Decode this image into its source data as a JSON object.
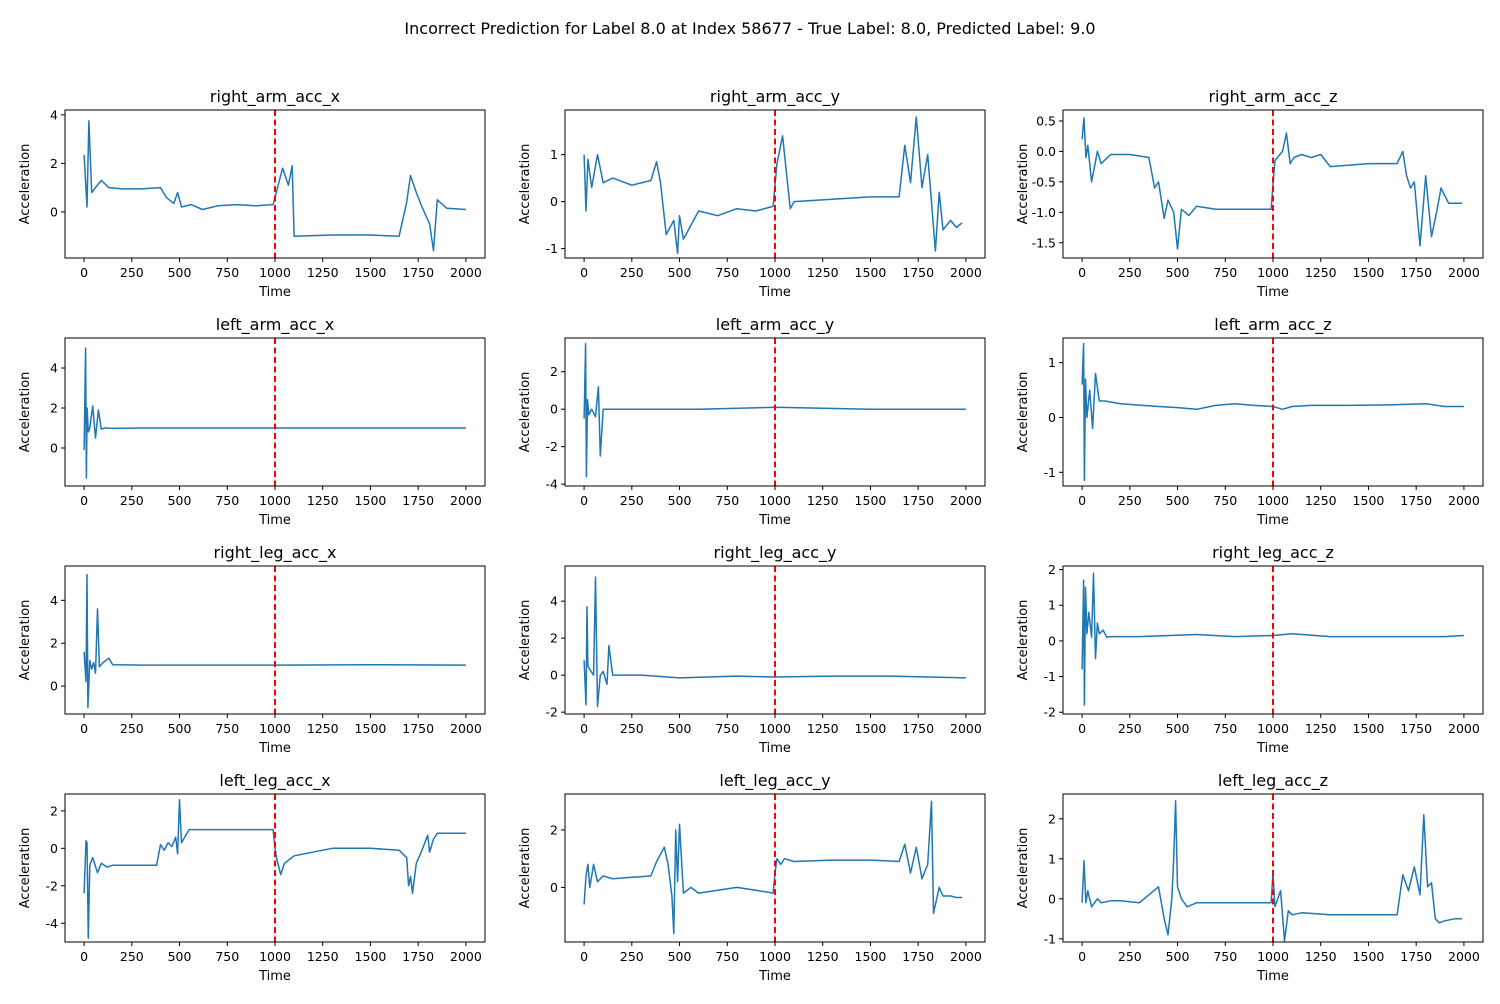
{
  "figure_title": "Incorrect Prediction for Label 8.0 at Index 58677 - True Label: 8.0, Predicted Label: 9.0",
  "colors": {
    "series": "#1f77b4",
    "marker": "#ff0000",
    "axes": "#000000"
  },
  "chart_data": [
    {
      "type": "line",
      "title": "right_arm_acc_x",
      "xlabel": "Time",
      "ylabel": "Acceleration",
      "xlim": [
        -100,
        2100
      ],
      "ylim": [
        -1.9,
        4.2
      ],
      "xticks": [
        0,
        250,
        500,
        750,
        1000,
        1250,
        1500,
        1750,
        2000
      ],
      "yticks": [
        0,
        2,
        4
      ],
      "vline_x": 1000,
      "x": [
        0,
        15,
        25,
        40,
        60,
        90,
        130,
        200,
        300,
        400,
        430,
        470,
        490,
        510,
        560,
        620,
        700,
        800,
        900,
        990,
        1010,
        1040,
        1070,
        1090,
        1100,
        1300,
        1500,
        1650,
        1690,
        1710,
        1740,
        1770,
        1810,
        1830,
        1850,
        1900,
        2000
      ],
      "y": [
        2.35,
        0.2,
        3.75,
        0.8,
        1.0,
        1.3,
        1.0,
        0.95,
        0.95,
        1.0,
        0.6,
        0.35,
        0.8,
        0.2,
        0.3,
        0.1,
        0.25,
        0.3,
        0.25,
        0.3,
        0.9,
        1.8,
        1.1,
        1.9,
        -1.0,
        -0.95,
        -0.95,
        -1.0,
        0.4,
        1.5,
        0.8,
        0.2,
        -0.5,
        -1.6,
        0.5,
        0.15,
        0.1
      ]
    },
    {
      "type": "line",
      "title": "right_arm_acc_y",
      "xlabel": "Time",
      "ylabel": "Acceleration",
      "xlim": [
        -100,
        2100
      ],
      "ylim": [
        -1.2,
        1.95
      ],
      "xticks": [
        0,
        250,
        500,
        750,
        1000,
        1250,
        1500,
        1750,
        2000
      ],
      "yticks": [
        -1,
        0,
        1
      ],
      "vline_x": 1000,
      "x": [
        0,
        10,
        20,
        40,
        70,
        100,
        150,
        250,
        350,
        380,
        400,
        430,
        470,
        490,
        500,
        520,
        560,
        600,
        700,
        800,
        900,
        990,
        1010,
        1040,
        1060,
        1080,
        1100,
        1300,
        1500,
        1650,
        1680,
        1710,
        1740,
        1770,
        1800,
        1840,
        1860,
        1880,
        1920,
        1950,
        1980
      ],
      "y": [
        1.0,
        -0.2,
        0.9,
        0.3,
        1.0,
        0.4,
        0.5,
        0.35,
        0.45,
        0.85,
        0.4,
        -0.7,
        -0.4,
        -1.1,
        -0.3,
        -0.8,
        -0.5,
        -0.2,
        -0.3,
        -0.15,
        -0.2,
        -0.1,
        0.8,
        1.4,
        0.6,
        -0.15,
        0.0,
        0.05,
        0.1,
        0.1,
        1.2,
        0.4,
        1.8,
        0.3,
        1.0,
        -1.05,
        0.2,
        -0.6,
        -0.4,
        -0.55,
        -0.45
      ]
    },
    {
      "type": "line",
      "title": "right_arm_acc_z",
      "xlabel": "Time",
      "ylabel": "Acceleration",
      "xlim": [
        -100,
        2100
      ],
      "ylim": [
        -1.75,
        0.68
      ],
      "xticks": [
        0,
        250,
        500,
        750,
        1000,
        1250,
        1500,
        1750,
        2000
      ],
      "yticks": [
        -1.5,
        -1.0,
        -0.5,
        0.0,
        0.5
      ],
      "vline_x": 1000,
      "x": [
        0,
        10,
        20,
        30,
        50,
        80,
        100,
        150,
        250,
        350,
        380,
        400,
        430,
        450,
        480,
        500,
        520,
        560,
        600,
        700,
        800,
        900,
        990,
        1010,
        1050,
        1070,
        1090,
        1110,
        1150,
        1200,
        1250,
        1300,
        1500,
        1650,
        1680,
        1700,
        1720,
        1740,
        1770,
        1800,
        1830,
        1860,
        1880,
        1920,
        1950,
        1990
      ],
      "y": [
        0.2,
        0.55,
        -0.1,
        0.1,
        -0.5,
        0.0,
        -0.2,
        -0.05,
        -0.05,
        -0.1,
        -0.6,
        -0.5,
        -1.1,
        -0.8,
        -1.0,
        -1.6,
        -0.95,
        -1.05,
        -0.9,
        -0.95,
        -0.95,
        -0.95,
        -0.95,
        -0.15,
        0.0,
        0.3,
        -0.2,
        -0.1,
        -0.05,
        -0.1,
        -0.05,
        -0.25,
        -0.2,
        -0.2,
        0.0,
        -0.4,
        -0.6,
        -0.5,
        -1.55,
        -0.4,
        -1.4,
        -0.95,
        -0.6,
        -0.85,
        -0.85,
        -0.85
      ]
    },
    {
      "type": "line",
      "title": "left_arm_acc_x",
      "xlabel": "Time",
      "ylabel": "Acceleration",
      "xlim": [
        -100,
        2100
      ],
      "ylim": [
        -1.9,
        5.5
      ],
      "xticks": [
        0,
        250,
        500,
        750,
        1000,
        1250,
        1500,
        1750,
        2000
      ],
      "yticks": [
        0,
        2,
        4
      ],
      "vline_x": 1000,
      "x": [
        0,
        8,
        12,
        16,
        22,
        30,
        45,
        60,
        75,
        90,
        110,
        150,
        300,
        1000,
        1500,
        2000
      ],
      "y": [
        -0.1,
        5.0,
        -1.5,
        2.0,
        0.8,
        1.0,
        2.1,
        0.5,
        1.9,
        0.95,
        1.0,
        0.98,
        1.0,
        1.0,
        1.0,
        1.0
      ]
    },
    {
      "type": "line",
      "title": "left_arm_acc_y",
      "xlabel": "Time",
      "ylabel": "Acceleration",
      "xlim": [
        -100,
        2100
      ],
      "ylim": [
        -4.1,
        3.8
      ],
      "xticks": [
        0,
        250,
        500,
        750,
        1000,
        1250,
        1500,
        1750,
        2000
      ],
      "yticks": [
        -4,
        -2,
        0,
        2
      ],
      "vline_x": 1000,
      "x": [
        0,
        8,
        12,
        18,
        25,
        40,
        60,
        75,
        85,
        100,
        150,
        300,
        600,
        1000,
        1500,
        2000
      ],
      "y": [
        -0.5,
        3.5,
        -3.6,
        0.5,
        -0.3,
        0.0,
        -0.4,
        1.2,
        -2.5,
        0.0,
        0.0,
        0.0,
        0.0,
        0.1,
        0.0,
        0.0
      ]
    },
    {
      "type": "line",
      "title": "left_arm_acc_z",
      "xlabel": "Time",
      "ylabel": "Acceleration",
      "xlim": [
        -100,
        2100
      ],
      "ylim": [
        -1.25,
        1.45
      ],
      "xticks": [
        0,
        250,
        500,
        750,
        1000,
        1250,
        1500,
        1750,
        2000
      ],
      "yticks": [
        -1,
        0,
        1
      ],
      "vline_x": 1000,
      "x": [
        0,
        8,
        12,
        18,
        25,
        40,
        55,
        70,
        90,
        120,
        200,
        400,
        500,
        600,
        700,
        800,
        900,
        1000,
        1050,
        1100,
        1200,
        1400,
        1600,
        1800,
        1900,
        2000
      ],
      "y": [
        0.6,
        1.35,
        -1.15,
        0.7,
        0.0,
        0.5,
        -0.2,
        0.8,
        0.3,
        0.3,
        0.25,
        0.2,
        0.18,
        0.15,
        0.22,
        0.25,
        0.22,
        0.2,
        0.15,
        0.2,
        0.22,
        0.22,
        0.23,
        0.25,
        0.2,
        0.2
      ]
    },
    {
      "type": "line",
      "title": "right_leg_acc_x",
      "xlabel": "Time",
      "ylabel": "Acceleration",
      "xlim": [
        -100,
        2100
      ],
      "ylim": [
        -1.3,
        5.6
      ],
      "xticks": [
        0,
        250,
        500,
        750,
        1000,
        1250,
        1500,
        1750,
        2000
      ],
      "yticks": [
        0,
        2,
        4
      ],
      "vline_x": 1000,
      "x": [
        0,
        10,
        15,
        20,
        30,
        40,
        50,
        60,
        70,
        80,
        100,
        130,
        150,
        300,
        1000,
        1500,
        2000
      ],
      "y": [
        1.6,
        0.2,
        5.2,
        -1.0,
        1.2,
        0.8,
        1.1,
        0.6,
        3.6,
        0.9,
        1.1,
        1.3,
        1.0,
        0.98,
        0.98,
        1.0,
        0.98
      ]
    },
    {
      "type": "line",
      "title": "right_leg_acc_y",
      "xlabel": "Time",
      "ylabel": "Acceleration",
      "xlim": [
        -100,
        2100
      ],
      "ylim": [
        -2.1,
        5.9
      ],
      "xticks": [
        0,
        250,
        500,
        750,
        1000,
        1250,
        1500,
        1750,
        2000
      ],
      "yticks": [
        -2,
        0,
        2,
        4
      ],
      "vline_x": 1000,
      "x": [
        0,
        10,
        15,
        20,
        30,
        50,
        60,
        70,
        85,
        100,
        120,
        130,
        150,
        300,
        500,
        800,
        1000,
        1300,
        1600,
        2000
      ],
      "y": [
        0.8,
        -1.6,
        3.7,
        0.5,
        0.3,
        0.0,
        5.3,
        -1.7,
        0.0,
        0.2,
        -0.5,
        1.6,
        0.0,
        0.0,
        -0.15,
        -0.05,
        -0.1,
        -0.05,
        -0.05,
        -0.15
      ]
    },
    {
      "type": "line",
      "title": "right_leg_acc_z",
      "xlabel": "Time",
      "ylabel": "Acceleration",
      "xlim": [
        -100,
        2100
      ],
      "ylim": [
        -2.05,
        2.1
      ],
      "xticks": [
        0,
        250,
        500,
        750,
        1000,
        1250,
        1500,
        1750,
        2000
      ],
      "yticks": [
        -2,
        -1,
        0,
        1,
        2
      ],
      "vline_x": 1000,
      "x": [
        0,
        8,
        12,
        18,
        25,
        35,
        50,
        60,
        70,
        80,
        90,
        110,
        130,
        150,
        300,
        600,
        800,
        1000,
        1100,
        1300,
        1600,
        1900,
        2000
      ],
      "y": [
        -0.8,
        1.7,
        -1.8,
        1.5,
        0.2,
        0.8,
        0.1,
        1.9,
        -0.5,
        0.5,
        0.2,
        0.3,
        0.1,
        0.12,
        0.12,
        0.18,
        0.12,
        0.15,
        0.2,
        0.12,
        0.12,
        0.12,
        0.15
      ]
    },
    {
      "type": "line",
      "title": "left_leg_acc_x",
      "xlabel": "Time",
      "ylabel": "Acceleration",
      "xlim": [
        -100,
        2100
      ],
      "ylim": [
        -5.0,
        2.9
      ],
      "xticks": [
        0,
        250,
        500,
        750,
        1000,
        1250,
        1500,
        1750,
        2000
      ],
      "yticks": [
        -4,
        -2,
        0,
        2
      ],
      "vline_x": 1000,
      "x": [
        0,
        10,
        15,
        22,
        30,
        45,
        70,
        90,
        120,
        150,
        250,
        380,
        400,
        420,
        440,
        460,
        480,
        490,
        500,
        510,
        550,
        700,
        900,
        990,
        1000,
        1010,
        1030,
        1050,
        1100,
        1300,
        1500,
        1650,
        1690,
        1700,
        1710,
        1720,
        1740,
        1770,
        1800,
        1810,
        1830,
        1850,
        1900,
        2000
      ],
      "y": [
        -2.4,
        0.4,
        0.3,
        -4.8,
        -0.9,
        -0.5,
        -1.3,
        -0.8,
        -1.0,
        -0.9,
        -0.9,
        -0.9,
        0.2,
        -0.1,
        0.3,
        0.1,
        0.6,
        -0.3,
        2.6,
        0.3,
        1.0,
        1.0,
        1.0,
        1.0,
        0.0,
        -0.6,
        -1.4,
        -0.8,
        -0.4,
        0.0,
        0.0,
        -0.1,
        -0.5,
        -2.0,
        -1.5,
        -2.4,
        -0.8,
        -0.1,
        0.7,
        -0.2,
        0.5,
        0.8,
        0.8,
        0.8
      ]
    },
    {
      "type": "line",
      "title": "left_leg_acc_y",
      "xlabel": "Time",
      "ylabel": "Acceleration",
      "xlim": [
        -100,
        2100
      ],
      "ylim": [
        -1.9,
        3.25
      ],
      "xticks": [
        0,
        250,
        500,
        750,
        1000,
        1250,
        1500,
        1750,
        2000
      ],
      "yticks": [
        0,
        2
      ],
      "vline_x": 1000,
      "x": [
        0,
        10,
        20,
        30,
        50,
        70,
        100,
        150,
        250,
        350,
        380,
        420,
        440,
        460,
        470,
        480,
        490,
        500,
        520,
        560,
        600,
        700,
        800,
        900,
        990,
        1000,
        1010,
        1030,
        1050,
        1100,
        1300,
        1500,
        1650,
        1680,
        1710,
        1740,
        1770,
        1800,
        1820,
        1830,
        1860,
        1880,
        1920,
        1950,
        1980
      ],
      "y": [
        -0.6,
        0.4,
        0.8,
        0.0,
        0.8,
        0.2,
        0.4,
        0.3,
        0.35,
        0.4,
        0.9,
        1.4,
        0.8,
        -0.3,
        -1.6,
        2.0,
        0.2,
        2.2,
        -0.2,
        0.0,
        -0.2,
        -0.1,
        0.0,
        -0.1,
        -0.2,
        0.5,
        1.0,
        0.8,
        1.0,
        0.9,
        0.95,
        0.95,
        0.9,
        1.5,
        0.5,
        1.4,
        0.3,
        0.8,
        3.0,
        -0.9,
        0.0,
        -0.3,
        -0.3,
        -0.35,
        -0.35
      ]
    },
    {
      "type": "line",
      "title": "left_leg_acc_z",
      "xlabel": "Time",
      "ylabel": "Acceleration",
      "xlim": [
        -100,
        2100
      ],
      "ylim": [
        -1.08,
        2.62
      ],
      "xticks": [
        0,
        250,
        500,
        750,
        1000,
        1250,
        1500,
        1750,
        2000
      ],
      "yticks": [
        -1,
        0,
        1,
        2
      ],
      "vline_x": 1000,
      "x": [
        0,
        10,
        20,
        30,
        50,
        80,
        100,
        150,
        200,
        300,
        400,
        430,
        450,
        470,
        480,
        490,
        500,
        520,
        550,
        600,
        700,
        800,
        900,
        990,
        1000,
        1010,
        1040,
        1060,
        1080,
        1100,
        1150,
        1300,
        1500,
        1650,
        1680,
        1710,
        1740,
        1770,
        1790,
        1810,
        1830,
        1850,
        1870,
        1900,
        1950,
        1990
      ],
      "y": [
        -0.1,
        0.95,
        -0.1,
        0.2,
        -0.2,
        0.0,
        -0.1,
        -0.05,
        -0.05,
        -0.1,
        0.3,
        -0.5,
        -0.9,
        0.0,
        1.0,
        2.45,
        0.3,
        0.0,
        -0.2,
        -0.1,
        -0.1,
        -0.1,
        -0.1,
        -0.1,
        0.65,
        -0.2,
        0.2,
        -1.05,
        -0.3,
        -0.4,
        -0.35,
        -0.4,
        -0.4,
        -0.4,
        0.6,
        0.2,
        0.8,
        0.1,
        2.1,
        0.3,
        0.4,
        -0.5,
        -0.6,
        -0.55,
        -0.5,
        -0.5
      ]
    }
  ]
}
